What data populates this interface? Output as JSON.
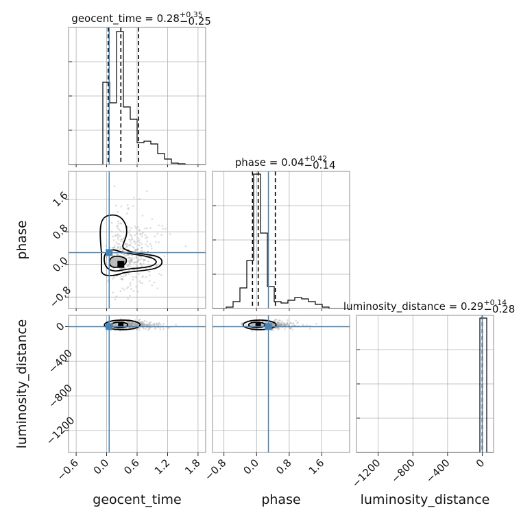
{
  "chart_data": {
    "type": "corner",
    "parameters": [
      "geocent_time",
      "phase",
      "luminosity_distance"
    ],
    "axis_labels": {
      "geocent_time": "geocent_time",
      "phase": "phase",
      "luminosity_distance": "luminosity_distance"
    },
    "titles": [
      {
        "param": "geocent_time",
        "text": "geocent_time = 0.28",
        "plus": "+0.35",
        "minus": "−0.25"
      },
      {
        "param": "phase",
        "text": "phase = 0.04",
        "plus": "+0.42",
        "minus": "−0.14"
      },
      {
        "param": "luminosity_distance",
        "text": "luminosity_distance = 0.29",
        "plus": "+0.14",
        "minus": "−0.28"
      }
    ],
    "ranges": {
      "geocent_time": [
        -0.75,
        1.95
      ],
      "phase": [
        -1.08,
        2.28
      ],
      "luminosity_distance": [
        -1450,
        130
      ]
    },
    "ticks": {
      "geocent_time": [
        -0.6,
        0.0,
        0.6,
        1.2,
        1.8
      ],
      "phase": [
        -0.8,
        0.0,
        0.8,
        1.6
      ],
      "luminosity_distance": [
        -1200,
        -800,
        -400,
        0
      ]
    },
    "tick_labels": {
      "geocent_time": [
        "−0.6",
        "0.0",
        "0.6",
        "1.2",
        "1.8"
      ],
      "phase": [
        "−0.8",
        "0.0",
        "0.8",
        "1.6"
      ],
      "luminosity_distance": [
        "−1200",
        "−800",
        "−400",
        "0"
      ]
    },
    "truths": {
      "geocent_time": 0.05,
      "phase": 0.29,
      "luminosity_distance": 0.0
    },
    "quantiles": {
      "geocent_time": [
        0.03,
        0.28,
        0.63
      ],
      "phase": [
        -0.1,
        0.04,
        0.46
      ],
      "luminosity_distance": [
        0.01,
        0.29,
        0.43
      ]
    },
    "histograms": {
      "geocent_time": {
        "edges": [
          -0.75,
          -0.615,
          -0.48,
          -0.345,
          -0.21,
          -0.075,
          0.06,
          0.195,
          0.33,
          0.465,
          0.6,
          0.735,
          0.87,
          1.005,
          1.14,
          1.275,
          1.41,
          1.545,
          1.68,
          1.815,
          1.95
        ],
        "counts": [
          0,
          0,
          0,
          0,
          0,
          0.6,
          0.45,
          0.97,
          0.42,
          0.33,
          0.16,
          0.17,
          0.15,
          0.08,
          0.04,
          0.01,
          0.005,
          0,
          0,
          0
        ]
      },
      "phase": {
        "edges": [
          -1.08,
          -0.912,
          -0.744,
          -0.576,
          -0.408,
          -0.24,
          -0.072,
          0.096,
          0.264,
          0.432,
          0.6,
          0.768,
          0.936,
          1.104,
          1.272,
          1.44,
          1.608,
          1.776,
          1.944,
          2.112,
          2.28
        ],
        "counts": [
          0,
          0,
          0.01,
          0.05,
          0.15,
          0.35,
          0.98,
          0.55,
          0.16,
          0.05,
          0.04,
          0.06,
          0.08,
          0.07,
          0.05,
          0.03,
          0.01,
          0,
          0,
          0
        ]
      },
      "luminosity_distance": {
        "edges": [
          -1450,
          -1371,
          -1292,
          -1213,
          -1134,
          -1055,
          -976,
          -897,
          -818,
          -739,
          -660,
          -581,
          -502,
          -423,
          -344,
          -265,
          -186,
          -107,
          -28,
          51,
          130
        ],
        "counts": [
          0,
          0,
          0,
          0,
          0,
          0,
          0,
          0,
          0,
          0,
          0,
          0,
          0,
          0,
          0,
          0,
          0,
          0,
          0.98,
          0
        ]
      }
    },
    "contours_2d": [
      {
        "x": "geocent_time",
        "y": "phase",
        "center": [
          0.28,
          0.0
        ],
        "levels": [
          "inner",
          "middle",
          "outer"
        ]
      },
      {
        "x": "geocent_time",
        "y": "luminosity_distance",
        "center": [
          0.28,
          20
        ],
        "levels": [
          "inner",
          "outer"
        ]
      },
      {
        "x": "phase",
        "y": "luminosity_distance",
        "center": [
          0.04,
          20
        ],
        "levels": [
          "inner",
          "outer"
        ]
      }
    ],
    "grid": true
  }
}
